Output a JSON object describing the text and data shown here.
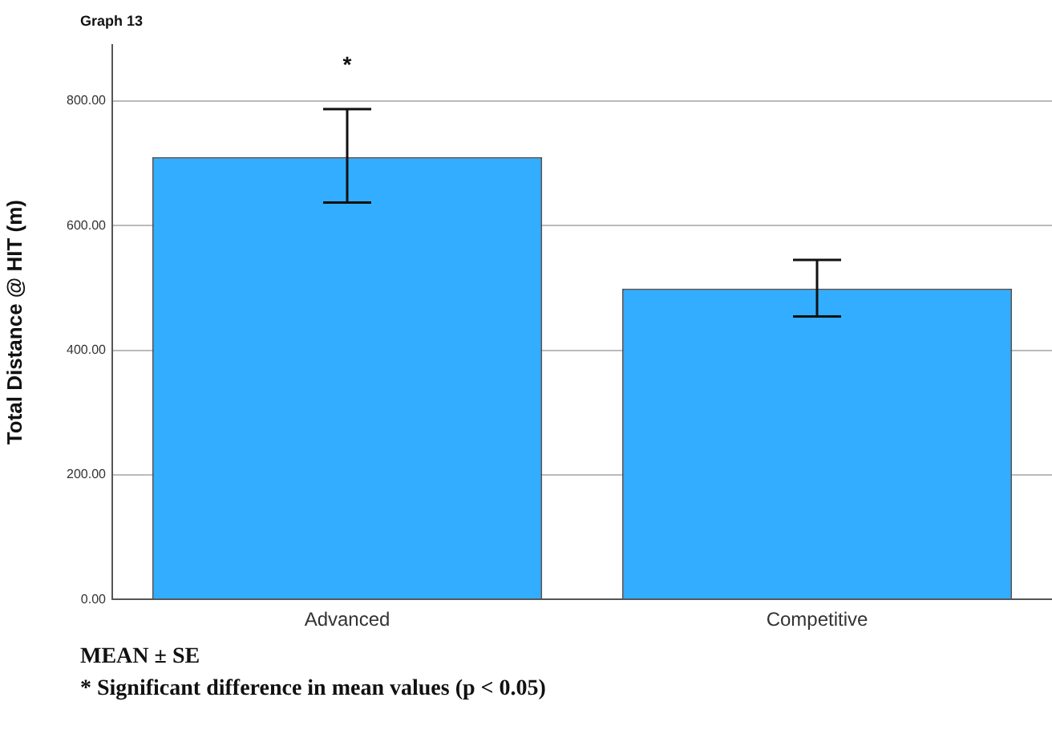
{
  "chart_data": {
    "type": "bar",
    "title": "Graph 13",
    "ylabel": "Total Distance @ HIT (m)",
    "categories": [
      "Advanced",
      "Competitive"
    ],
    "values": [
      710,
      499
    ],
    "color": "#33adff",
    "errors": [
      [
        637,
        787
      ],
      [
        454,
        545
      ]
    ],
    "ylim": [
      0,
      890
    ],
    "yticks": [
      {
        "value": 0,
        "label": "0.00"
      },
      {
        "value": 200,
        "label": "200.00"
      },
      {
        "value": 400,
        "label": "400.00"
      },
      {
        "value": 600,
        "label": "600.00"
      },
      {
        "value": 800,
        "label": "800.00"
      }
    ],
    "grid": "y",
    "legend": false,
    "annotations": [
      "*",
      "MEAN ± SE",
      "* Significant difference in mean values (p < 0.05)"
    ]
  }
}
